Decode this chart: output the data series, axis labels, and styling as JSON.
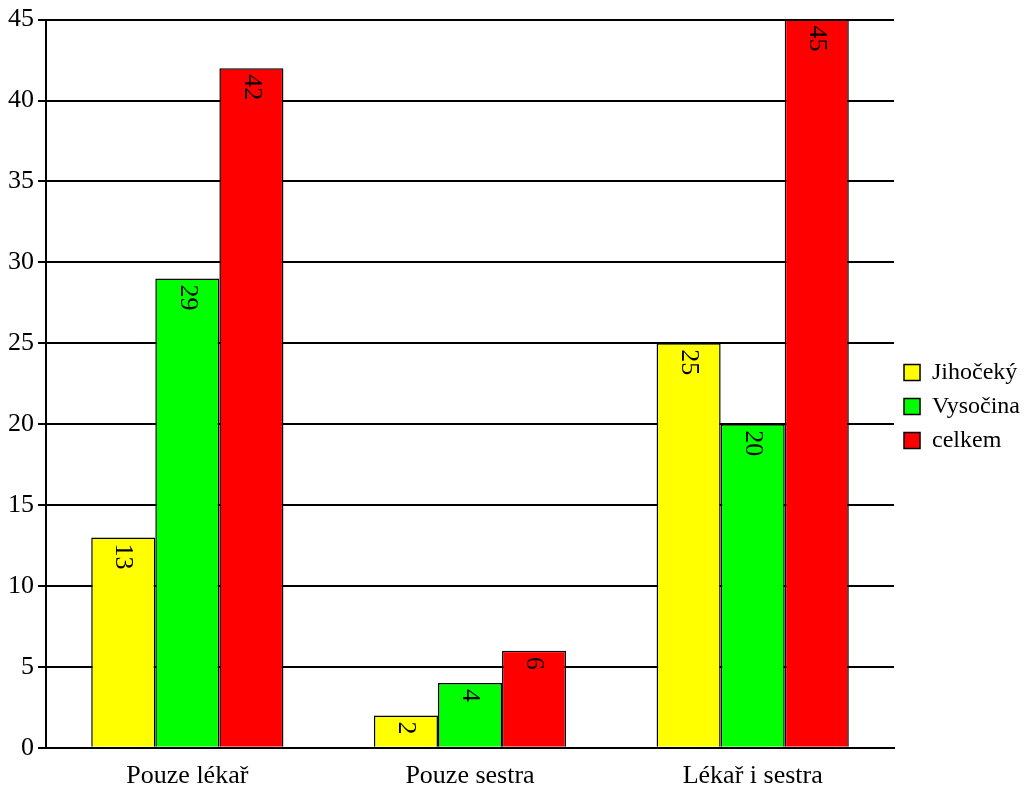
{
  "chart_data": {
    "type": "bar",
    "categories": [
      "Pouze lékař",
      "Pouze sestra",
      "Lékař i sestra"
    ],
    "series": [
      {
        "name": "Jihočeký",
        "color": "#ffff00",
        "values": [
          13,
          2,
          25
        ]
      },
      {
        "name": "Vysočina",
        "color": "#00ff00",
        "values": [
          29,
          4,
          20
        ]
      },
      {
        "name": "celkem",
        "color": "#ff0000",
        "values": [
          42,
          6,
          45
        ]
      }
    ],
    "ylim": [
      0,
      45
    ],
    "yticks": [
      0,
      5,
      10,
      15,
      20,
      25,
      30,
      35,
      40,
      45
    ],
    "grid": "y",
    "legend": "right",
    "data_labels": true
  }
}
